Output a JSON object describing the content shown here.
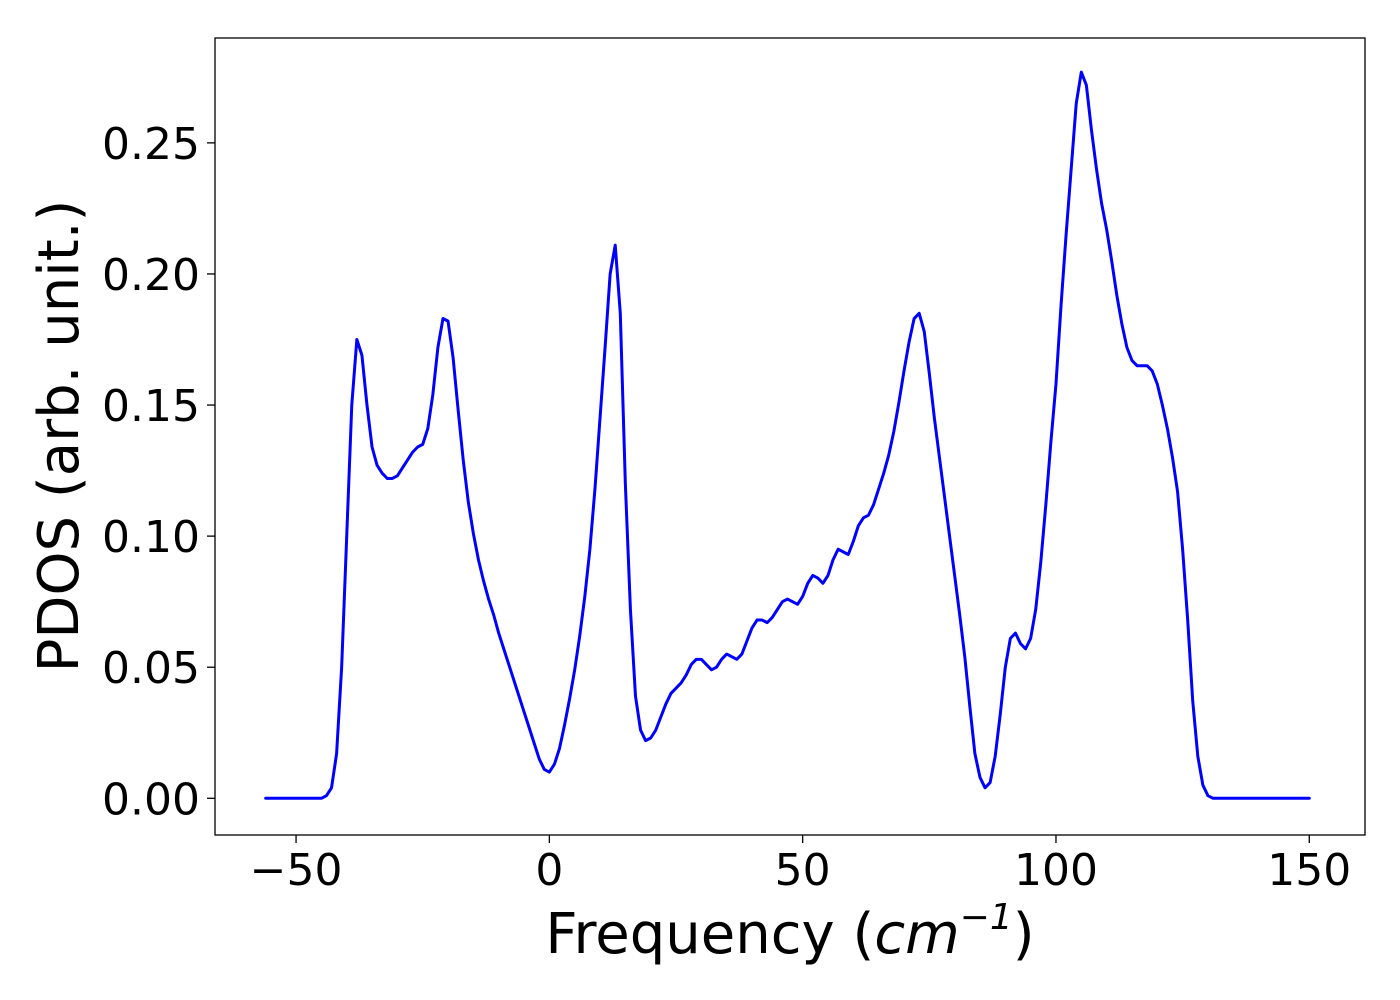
{
  "chart_data": {
    "type": "line",
    "xlabel": {
      "prefix": "Frequency (",
      "unit_base": "cm",
      "unit_exponent": "−1",
      "suffix": ")"
    },
    "ylabel": "PDOS (arb. unit.)",
    "xlim": [
      -66,
      161
    ],
    "ylim": [
      -0.014,
      0.29
    ],
    "x_ticks": [
      {
        "value": -50,
        "label": "−50"
      },
      {
        "value": 0,
        "label": "0"
      },
      {
        "value": 50,
        "label": "50"
      },
      {
        "value": 100,
        "label": "100"
      },
      {
        "value": 150,
        "label": "150"
      }
    ],
    "y_ticks": [
      {
        "value": 0.0,
        "label": "0.00"
      },
      {
        "value": 0.05,
        "label": "0.05"
      },
      {
        "value": 0.1,
        "label": "0.10"
      },
      {
        "value": 0.15,
        "label": "0.15"
      },
      {
        "value": 0.2,
        "label": "0.20"
      },
      {
        "value": 0.25,
        "label": "0.25"
      }
    ],
    "grid": false,
    "series": [
      {
        "color": "#0000ff",
        "points": [
          [
            -56,
            0.0
          ],
          [
            -45,
            0.0
          ],
          [
            -44,
            0.001
          ],
          [
            -43,
            0.004
          ],
          [
            -42,
            0.017
          ],
          [
            -41,
            0.05
          ],
          [
            -40,
            0.1
          ],
          [
            -39,
            0.15
          ],
          [
            -38,
            0.175
          ],
          [
            -37,
            0.169
          ],
          [
            -36,
            0.15
          ],
          [
            -35,
            0.134
          ],
          [
            -34,
            0.127
          ],
          [
            -33,
            0.124
          ],
          [
            -32,
            0.122
          ],
          [
            -31,
            0.122
          ],
          [
            -30,
            0.123
          ],
          [
            -29,
            0.126
          ],
          [
            -28,
            0.129
          ],
          [
            -27,
            0.132
          ],
          [
            -26,
            0.134
          ],
          [
            -25,
            0.135
          ],
          [
            -24,
            0.141
          ],
          [
            -23,
            0.154
          ],
          [
            -22,
            0.172
          ],
          [
            -21,
            0.183
          ],
          [
            -20,
            0.182
          ],
          [
            -19,
            0.168
          ],
          [
            -18,
            0.148
          ],
          [
            -17,
            0.129
          ],
          [
            -16,
            0.113
          ],
          [
            -15,
            0.101
          ],
          [
            -14,
            0.091
          ],
          [
            -13,
            0.083
          ],
          [
            -12,
            0.076
          ],
          [
            -11,
            0.07
          ],
          [
            -10,
            0.063
          ],
          [
            -9,
            0.057
          ],
          [
            -8,
            0.051
          ],
          [
            -7,
            0.045
          ],
          [
            -6,
            0.039
          ],
          [
            -5,
            0.033
          ],
          [
            -4,
            0.027
          ],
          [
            -3,
            0.021
          ],
          [
            -2,
            0.015
          ],
          [
            -1,
            0.011
          ],
          [
            0,
            0.01
          ],
          [
            1,
            0.013
          ],
          [
            2,
            0.019
          ],
          [
            3,
            0.028
          ],
          [
            4,
            0.038
          ],
          [
            5,
            0.049
          ],
          [
            6,
            0.062
          ],
          [
            7,
            0.077
          ],
          [
            8,
            0.095
          ],
          [
            9,
            0.118
          ],
          [
            10,
            0.145
          ],
          [
            11,
            0.172
          ],
          [
            12,
            0.2
          ],
          [
            13,
            0.211
          ],
          [
            14,
            0.185
          ],
          [
            15,
            0.12
          ],
          [
            16,
            0.072
          ],
          [
            17,
            0.039
          ],
          [
            18,
            0.026
          ],
          [
            19,
            0.022
          ],
          [
            20,
            0.023
          ],
          [
            21,
            0.026
          ],
          [
            22,
            0.031
          ],
          [
            23,
            0.036
          ],
          [
            24,
            0.04
          ],
          [
            25,
            0.042
          ],
          [
            26,
            0.044
          ],
          [
            27,
            0.047
          ],
          [
            28,
            0.051
          ],
          [
            29,
            0.053
          ],
          [
            30,
            0.053
          ],
          [
            31,
            0.051
          ],
          [
            32,
            0.049
          ],
          [
            33,
            0.05
          ],
          [
            34,
            0.053
          ],
          [
            35,
            0.055
          ],
          [
            36,
            0.054
          ],
          [
            37,
            0.053
          ],
          [
            38,
            0.055
          ],
          [
            39,
            0.06
          ],
          [
            40,
            0.065
          ],
          [
            41,
            0.068
          ],
          [
            42,
            0.068
          ],
          [
            43,
            0.067
          ],
          [
            44,
            0.069
          ],
          [
            45,
            0.072
          ],
          [
            46,
            0.075
          ],
          [
            47,
            0.076
          ],
          [
            48,
            0.075
          ],
          [
            49,
            0.074
          ],
          [
            50,
            0.077
          ],
          [
            51,
            0.082
          ],
          [
            52,
            0.085
          ],
          [
            53,
            0.084
          ],
          [
            54,
            0.082
          ],
          [
            55,
            0.085
          ],
          [
            56,
            0.091
          ],
          [
            57,
            0.095
          ],
          [
            58,
            0.094
          ],
          [
            59,
            0.093
          ],
          [
            60,
            0.098
          ],
          [
            61,
            0.104
          ],
          [
            62,
            0.107
          ],
          [
            63,
            0.108
          ],
          [
            64,
            0.112
          ],
          [
            65,
            0.118
          ],
          [
            66,
            0.124
          ],
          [
            67,
            0.131
          ],
          [
            68,
            0.14
          ],
          [
            69,
            0.151
          ],
          [
            70,
            0.163
          ],
          [
            71,
            0.174
          ],
          [
            72,
            0.183
          ],
          [
            73,
            0.185
          ],
          [
            74,
            0.178
          ],
          [
            75,
            0.162
          ],
          [
            76,
            0.145
          ],
          [
            77,
            0.13
          ],
          [
            78,
            0.115
          ],
          [
            79,
            0.1
          ],
          [
            80,
            0.085
          ],
          [
            81,
            0.07
          ],
          [
            82,
            0.054
          ],
          [
            83,
            0.035
          ],
          [
            84,
            0.017
          ],
          [
            85,
            0.008
          ],
          [
            86,
            0.004
          ],
          [
            87,
            0.006
          ],
          [
            88,
            0.016
          ],
          [
            89,
            0.032
          ],
          [
            90,
            0.05
          ],
          [
            91,
            0.061
          ],
          [
            92,
            0.063
          ],
          [
            93,
            0.059
          ],
          [
            94,
            0.057
          ],
          [
            95,
            0.061
          ],
          [
            96,
            0.072
          ],
          [
            97,
            0.09
          ],
          [
            98,
            0.112
          ],
          [
            99,
            0.136
          ],
          [
            100,
            0.158
          ],
          [
            101,
            0.188
          ],
          [
            102,
            0.215
          ],
          [
            103,
            0.24
          ],
          [
            104,
            0.265
          ],
          [
            105,
            0.277
          ],
          [
            106,
            0.272
          ],
          [
            107,
            0.255
          ],
          [
            108,
            0.24
          ],
          [
            109,
            0.227
          ],
          [
            110,
            0.217
          ],
          [
            111,
            0.205
          ],
          [
            112,
            0.192
          ],
          [
            113,
            0.181
          ],
          [
            114,
            0.172
          ],
          [
            115,
            0.167
          ],
          [
            116,
            0.165
          ],
          [
            117,
            0.165
          ],
          [
            118,
            0.165
          ],
          [
            119,
            0.163
          ],
          [
            120,
            0.158
          ],
          [
            121,
            0.15
          ],
          [
            122,
            0.141
          ],
          [
            123,
            0.13
          ],
          [
            124,
            0.117
          ],
          [
            125,
            0.095
          ],
          [
            126,
            0.068
          ],
          [
            127,
            0.037
          ],
          [
            128,
            0.016
          ],
          [
            129,
            0.005
          ],
          [
            130,
            0.001
          ],
          [
            131,
            0.0
          ],
          [
            150,
            0.0
          ]
        ]
      }
    ]
  }
}
